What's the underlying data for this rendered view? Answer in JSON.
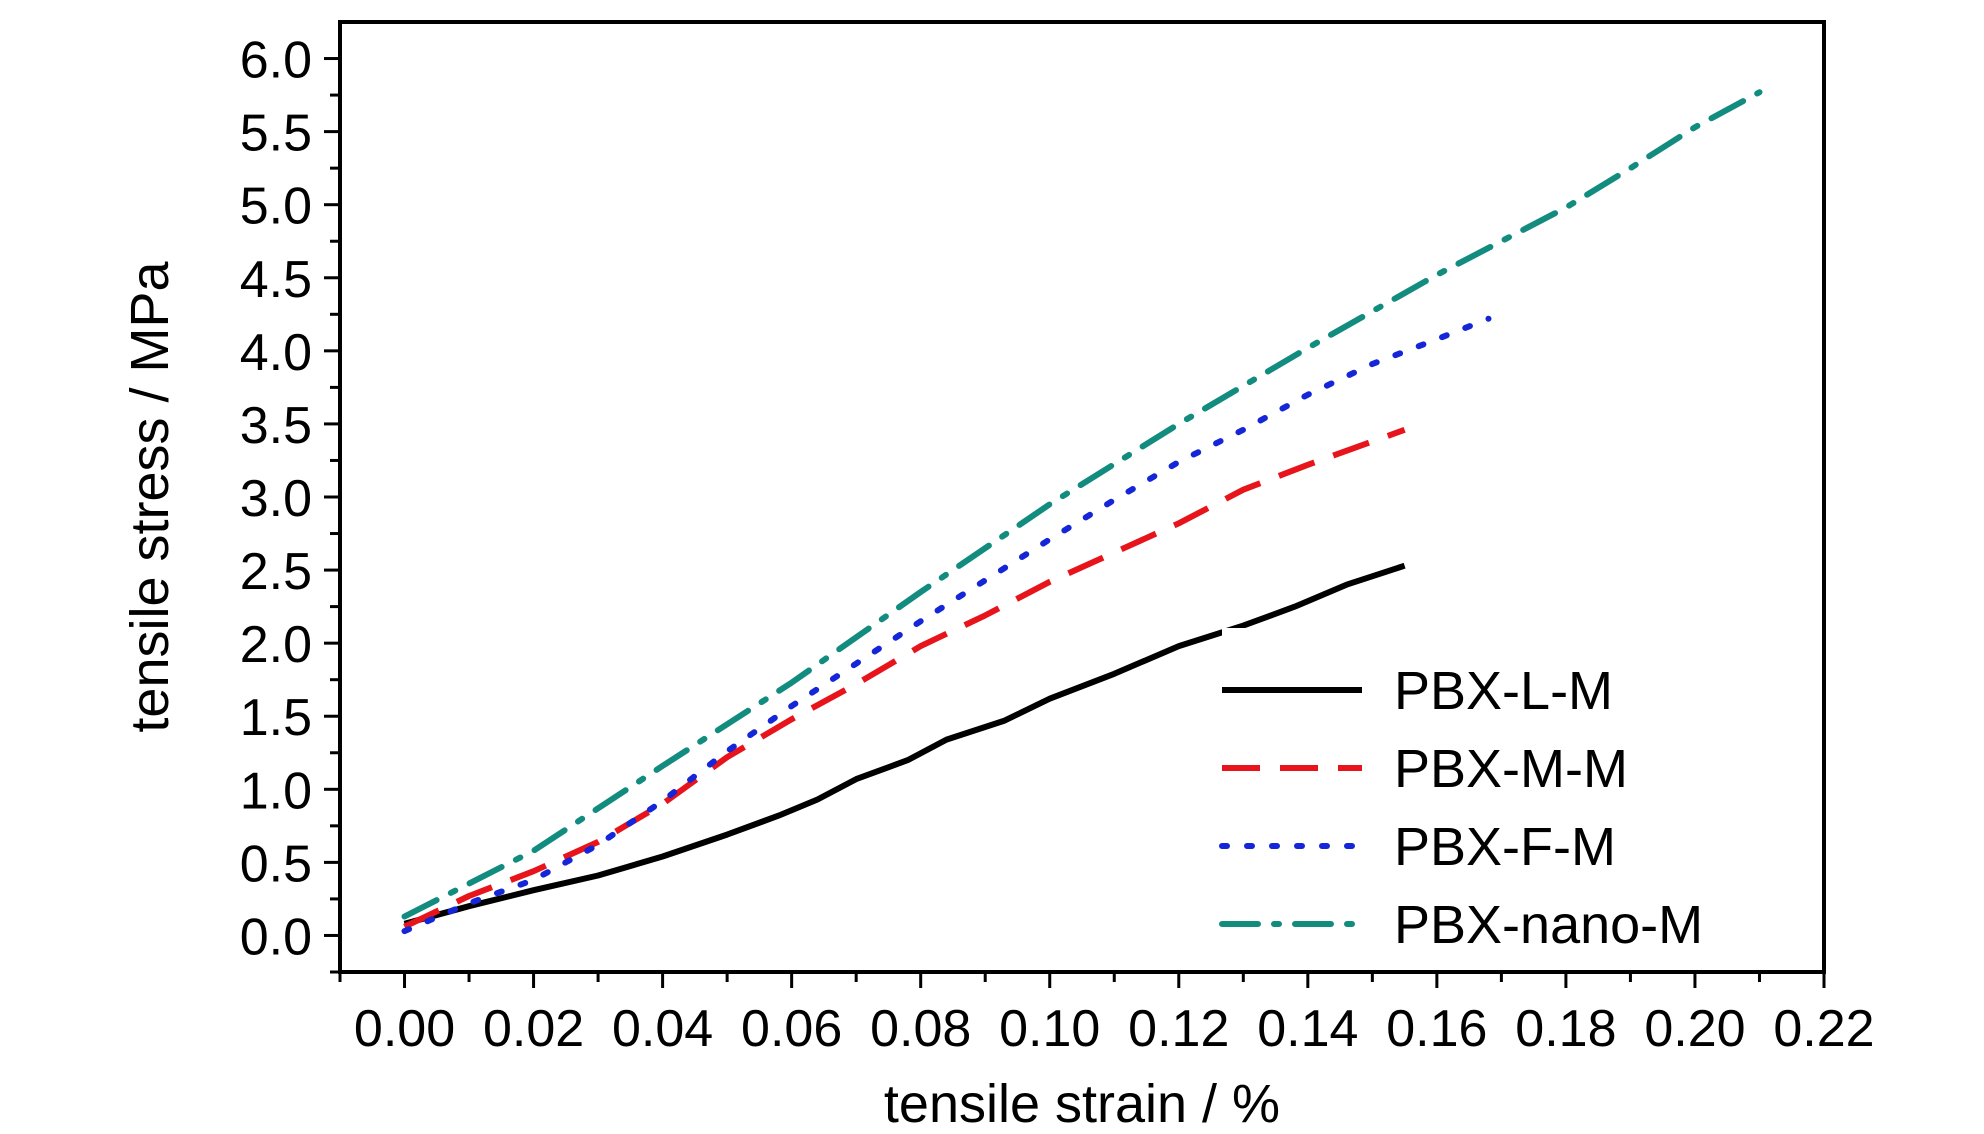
{
  "chart_data": {
    "type": "line",
    "xlabel": "tensile strain / %",
    "ylabel": "tensile stress / MPa",
    "xlim": [
      -0.01,
      0.22
    ],
    "ylim": [
      -0.25,
      6.25
    ],
    "x_ticks": [
      "0.00",
      "0.02",
      "0.04",
      "0.06",
      "0.08",
      "0.10",
      "0.12",
      "0.14",
      "0.16",
      "0.18",
      "0.20",
      "0.22"
    ],
    "y_ticks": [
      "0.0",
      "0.5",
      "1.0",
      "1.5",
      "2.0",
      "2.5",
      "3.0",
      "3.5",
      "4.0",
      "4.5",
      "5.0",
      "5.5",
      "6.0"
    ],
    "grid": false,
    "legend_position": "lower-right",
    "series": [
      {
        "name": "PBX-L-M",
        "color": "#000000",
        "dash": "solid",
        "x": [
          0.0,
          0.01,
          0.02,
          0.03,
          0.04,
          0.05,
          0.058,
          0.064,
          0.07,
          0.078,
          0.084,
          0.093,
          0.1,
          0.11,
          0.12,
          0.13,
          0.138,
          0.146,
          0.155
        ],
        "y": [
          0.08,
          0.2,
          0.31,
          0.41,
          0.54,
          0.69,
          0.82,
          0.93,
          1.07,
          1.2,
          1.34,
          1.47,
          1.62,
          1.79,
          1.98,
          2.12,
          2.25,
          2.4,
          2.53
        ]
      },
      {
        "name": "PBX-M-M",
        "color": "#e8141b",
        "dash": "dashed",
        "x": [
          0.0,
          0.01,
          0.02,
          0.03,
          0.04,
          0.05,
          0.06,
          0.07,
          0.08,
          0.09,
          0.1,
          0.11,
          0.12,
          0.13,
          0.14,
          0.155
        ],
        "y": [
          0.06,
          0.27,
          0.44,
          0.64,
          0.9,
          1.22,
          1.48,
          1.72,
          1.98,
          2.19,
          2.42,
          2.62,
          2.82,
          3.05,
          3.22,
          3.46
        ]
      },
      {
        "name": "PBX-F-M",
        "color": "#1525d8",
        "dash": "dotted",
        "x": [
          0.0,
          0.01,
          0.02,
          0.03,
          0.04,
          0.05,
          0.06,
          0.07,
          0.08,
          0.09,
          0.1,
          0.11,
          0.12,
          0.13,
          0.14,
          0.15,
          0.16,
          0.168
        ],
        "y": [
          0.03,
          0.22,
          0.38,
          0.62,
          0.92,
          1.26,
          1.57,
          1.86,
          2.15,
          2.43,
          2.71,
          2.98,
          3.24,
          3.46,
          3.7,
          3.91,
          4.08,
          4.22
        ]
      },
      {
        "name": "PBX-nano-M",
        "color": "#138c80",
        "dash": "dashdot",
        "x": [
          0.0,
          0.02,
          0.04,
          0.06,
          0.08,
          0.1,
          0.12,
          0.14,
          0.16,
          0.18,
          0.19,
          0.2,
          0.21
        ],
        "y": [
          0.13,
          0.58,
          1.16,
          1.73,
          2.35,
          2.95,
          3.5,
          4.02,
          4.52,
          4.98,
          5.25,
          5.53,
          5.77
        ]
      }
    ]
  }
}
